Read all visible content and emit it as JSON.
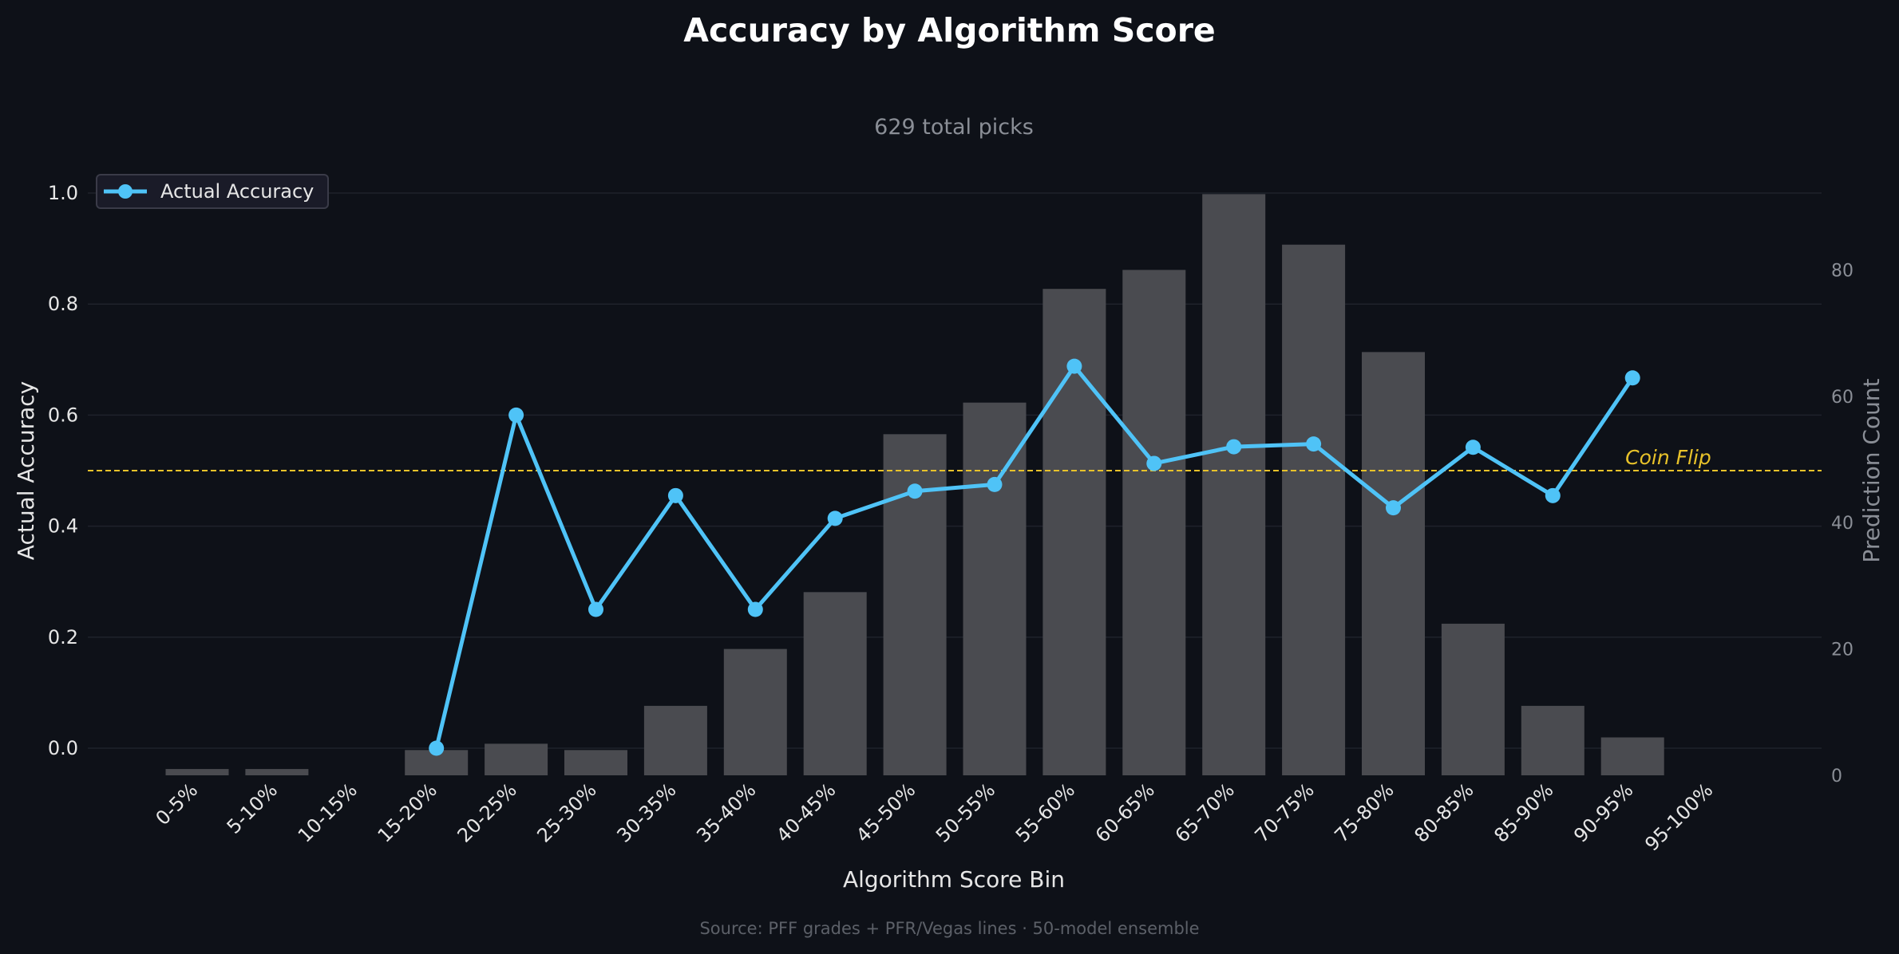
{
  "chart_data": {
    "type": "bar+line",
    "title": "Accuracy by Algorithm Score",
    "subtitle": "629 total picks",
    "source": "Source: PFF grades + PFR/Vegas lines · 50-model ensemble",
    "xlabel": "Algorithm Score Bin",
    "ylabel_left": "Actual Accuracy",
    "ylabel_right": "Prediction Count",
    "categories": [
      "0-5%",
      "5-10%",
      "10-15%",
      "15-20%",
      "20-25%",
      "25-30%",
      "30-35%",
      "35-40%",
      "40-45%",
      "45-50%",
      "50-55%",
      "55-60%",
      "60-65%",
      "65-70%",
      "70-75%",
      "75-80%",
      "80-85%",
      "85-90%",
      "90-95%",
      "95-100%"
    ],
    "counts": [
      1,
      1,
      0,
      4,
      5,
      4,
      11,
      20,
      29,
      54,
      59,
      77,
      80,
      92,
      84,
      67,
      24,
      11,
      6,
      0
    ],
    "accuracy": [
      null,
      null,
      null,
      0.0,
      0.6,
      0.25,
      0.455,
      0.25,
      0.414,
      0.463,
      0.475,
      0.688,
      0.513,
      0.543,
      0.548,
      0.433,
      0.542,
      0.455,
      0.667,
      null
    ],
    "series": [
      {
        "name": "Actual Accuracy",
        "axis": "left",
        "color": "#4fc3f7"
      }
    ],
    "bar_color": "#4a4b50",
    "ylim_left": [
      -0.05,
      1.0
    ],
    "yticks_left": [
      "0.0",
      "0.2",
      "0.4",
      "0.6",
      "0.8",
      "1.0"
    ],
    "ylim_right": [
      0,
      92
    ],
    "yticks_right": [
      "0",
      "20",
      "40",
      "60",
      "80"
    ],
    "reference_line": {
      "value": 0.5,
      "label": "Coin Flip",
      "color": "#e8c22a"
    },
    "legend_placement": "top-left",
    "grid": true
  }
}
